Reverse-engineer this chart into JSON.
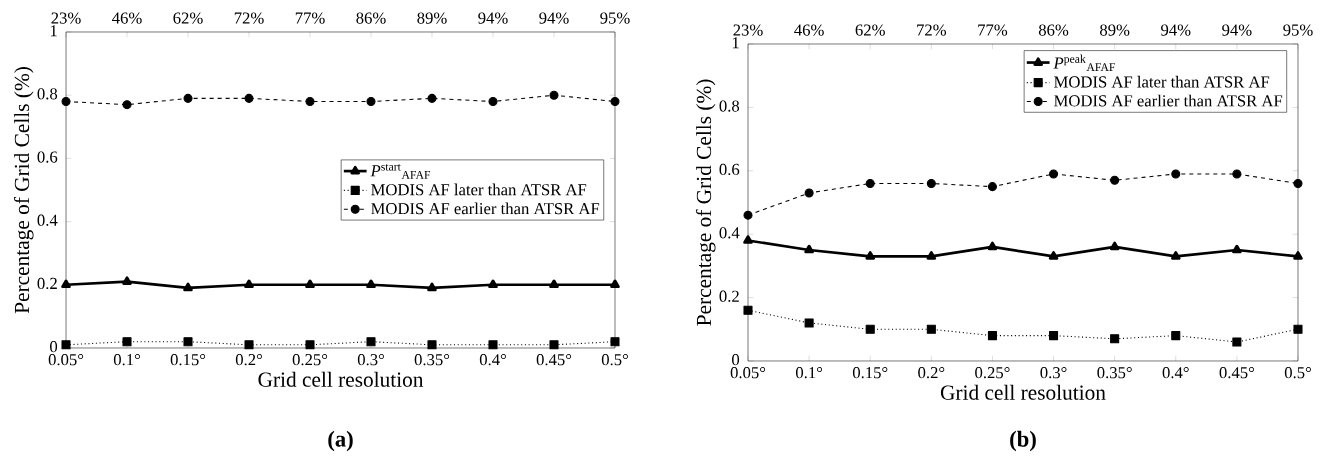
{
  "chart_data": [
    {
      "type": "line",
      "xlabel": "Grid cell resolution",
      "ylabel": "Percentage of Grid Cells (%)",
      "categories": [
        "0.05°",
        "0.1°",
        "0.15°",
        "0.2°",
        "0.25°",
        "0.3°",
        "0.35°",
        "0.4°",
        "0.45°",
        "0.5°"
      ],
      "ylim": [
        0,
        1
      ],
      "yticks": [
        0,
        0.2,
        0.4,
        0.6,
        0.8,
        1
      ],
      "legend": "right",
      "annotations": [
        "23%",
        "46%",
        "62%",
        "72%",
        "77%",
        "86%",
        "89%",
        "94%",
        "94%",
        "95%",
        "(a)"
      ],
      "series": [
        {
          "name": "*P*$^{start}$$_{AFAF}$",
          "color": "#000000",
          "marker": "triangle",
          "line_style": "solid",
          "values": [
            0.2,
            0.21,
            0.19,
            0.2,
            0.2,
            0.2,
            0.19,
            0.2,
            0.2,
            0.2
          ]
        },
        {
          "name": "MODIS AF later than ATSR AF",
          "color": "#000000",
          "marker": "square",
          "line_style": "dotted",
          "values": [
            0.01,
            0.02,
            0.02,
            0.01,
            0.01,
            0.02,
            0.01,
            0.01,
            0.01,
            0.02
          ]
        },
        {
          "name": "MODIS AF earlier than ATSR AF",
          "color": "#000000",
          "marker": "circle",
          "line_style": "dashed",
          "values": [
            0.78,
            0.77,
            0.79,
            0.79,
            0.78,
            0.78,
            0.79,
            0.78,
            0.8,
            0.78
          ]
        }
      ]
    },
    {
      "type": "line",
      "xlabel": "Grid cell resolution",
      "ylabel": "Percentage of Grid Cells (%)",
      "categories": [
        "0.05°",
        "0.1°",
        "0.15°",
        "0.2°",
        "0.25°",
        "0.3°",
        "0.35°",
        "0.4°",
        "0.45°",
        "0.5°"
      ],
      "ylim": [
        0,
        1
      ],
      "yticks": [
        0,
        0.2,
        0.4,
        0.6,
        0.8,
        1
      ],
      "legend": "top right",
      "annotations": [
        "23%",
        "46%",
        "62%",
        "72%",
        "77%",
        "86%",
        "89%",
        "94%",
        "94%",
        "95%",
        "(b)"
      ],
      "series": [
        {
          "name": "*P*$^{peak}$$_{AFAF}$",
          "color": "#000000",
          "marker": "triangle",
          "line_style": "solid",
          "values": [
            0.38,
            0.35,
            0.33,
            0.33,
            0.36,
            0.33,
            0.36,
            0.33,
            0.35,
            0.33
          ]
        },
        {
          "name": "MODIS AF later than ATSR AF",
          "color": "#000000",
          "marker": "square",
          "line_style": "dotted",
          "values": [
            0.16,
            0.12,
            0.1,
            0.1,
            0.08,
            0.08,
            0.07,
            0.08,
            0.06,
            0.1
          ]
        },
        {
          "name": "MODIS AF earlier than ATSR AF",
          "color": "#000000",
          "marker": "circle",
          "line_style": "dashed",
          "values": [
            0.46,
            0.53,
            0.56,
            0.56,
            0.55,
            0.59,
            0.57,
            0.59,
            0.59,
            0.56
          ]
        }
      ]
    }
  ]
}
